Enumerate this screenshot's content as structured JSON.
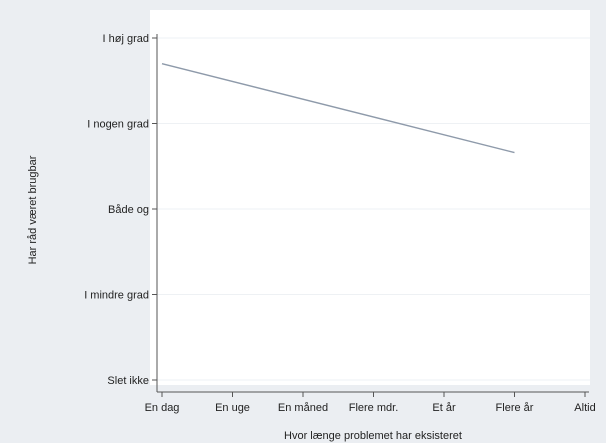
{
  "chart_data": {
    "type": "line",
    "title": "",
    "xlabel": "Hvor længe problemet har eksisteret",
    "ylabel": "Har råd været brugbar",
    "x_categories": [
      "En dag",
      "En uge",
      "En måned",
      "Flere mdr.",
      "Et år",
      "Flere år",
      "Altid"
    ],
    "y_categories": [
      "Slet ikke",
      "I mindre grad",
      "Både og",
      "I nogen grad",
      "I høj grad"
    ],
    "ylim": [
      1,
      5
    ],
    "grid": "horizontal",
    "series": [
      {
        "x": [
          "En dag",
          "Flere år"
        ],
        "y": [
          4.7,
          3.66
        ]
      }
    ],
    "colors": {
      "background": "#ebeef2",
      "plot_area": "#ffffff",
      "line": "#8e9aaa",
      "gridline": "#eef1f4",
      "axis": "#555555"
    }
  }
}
